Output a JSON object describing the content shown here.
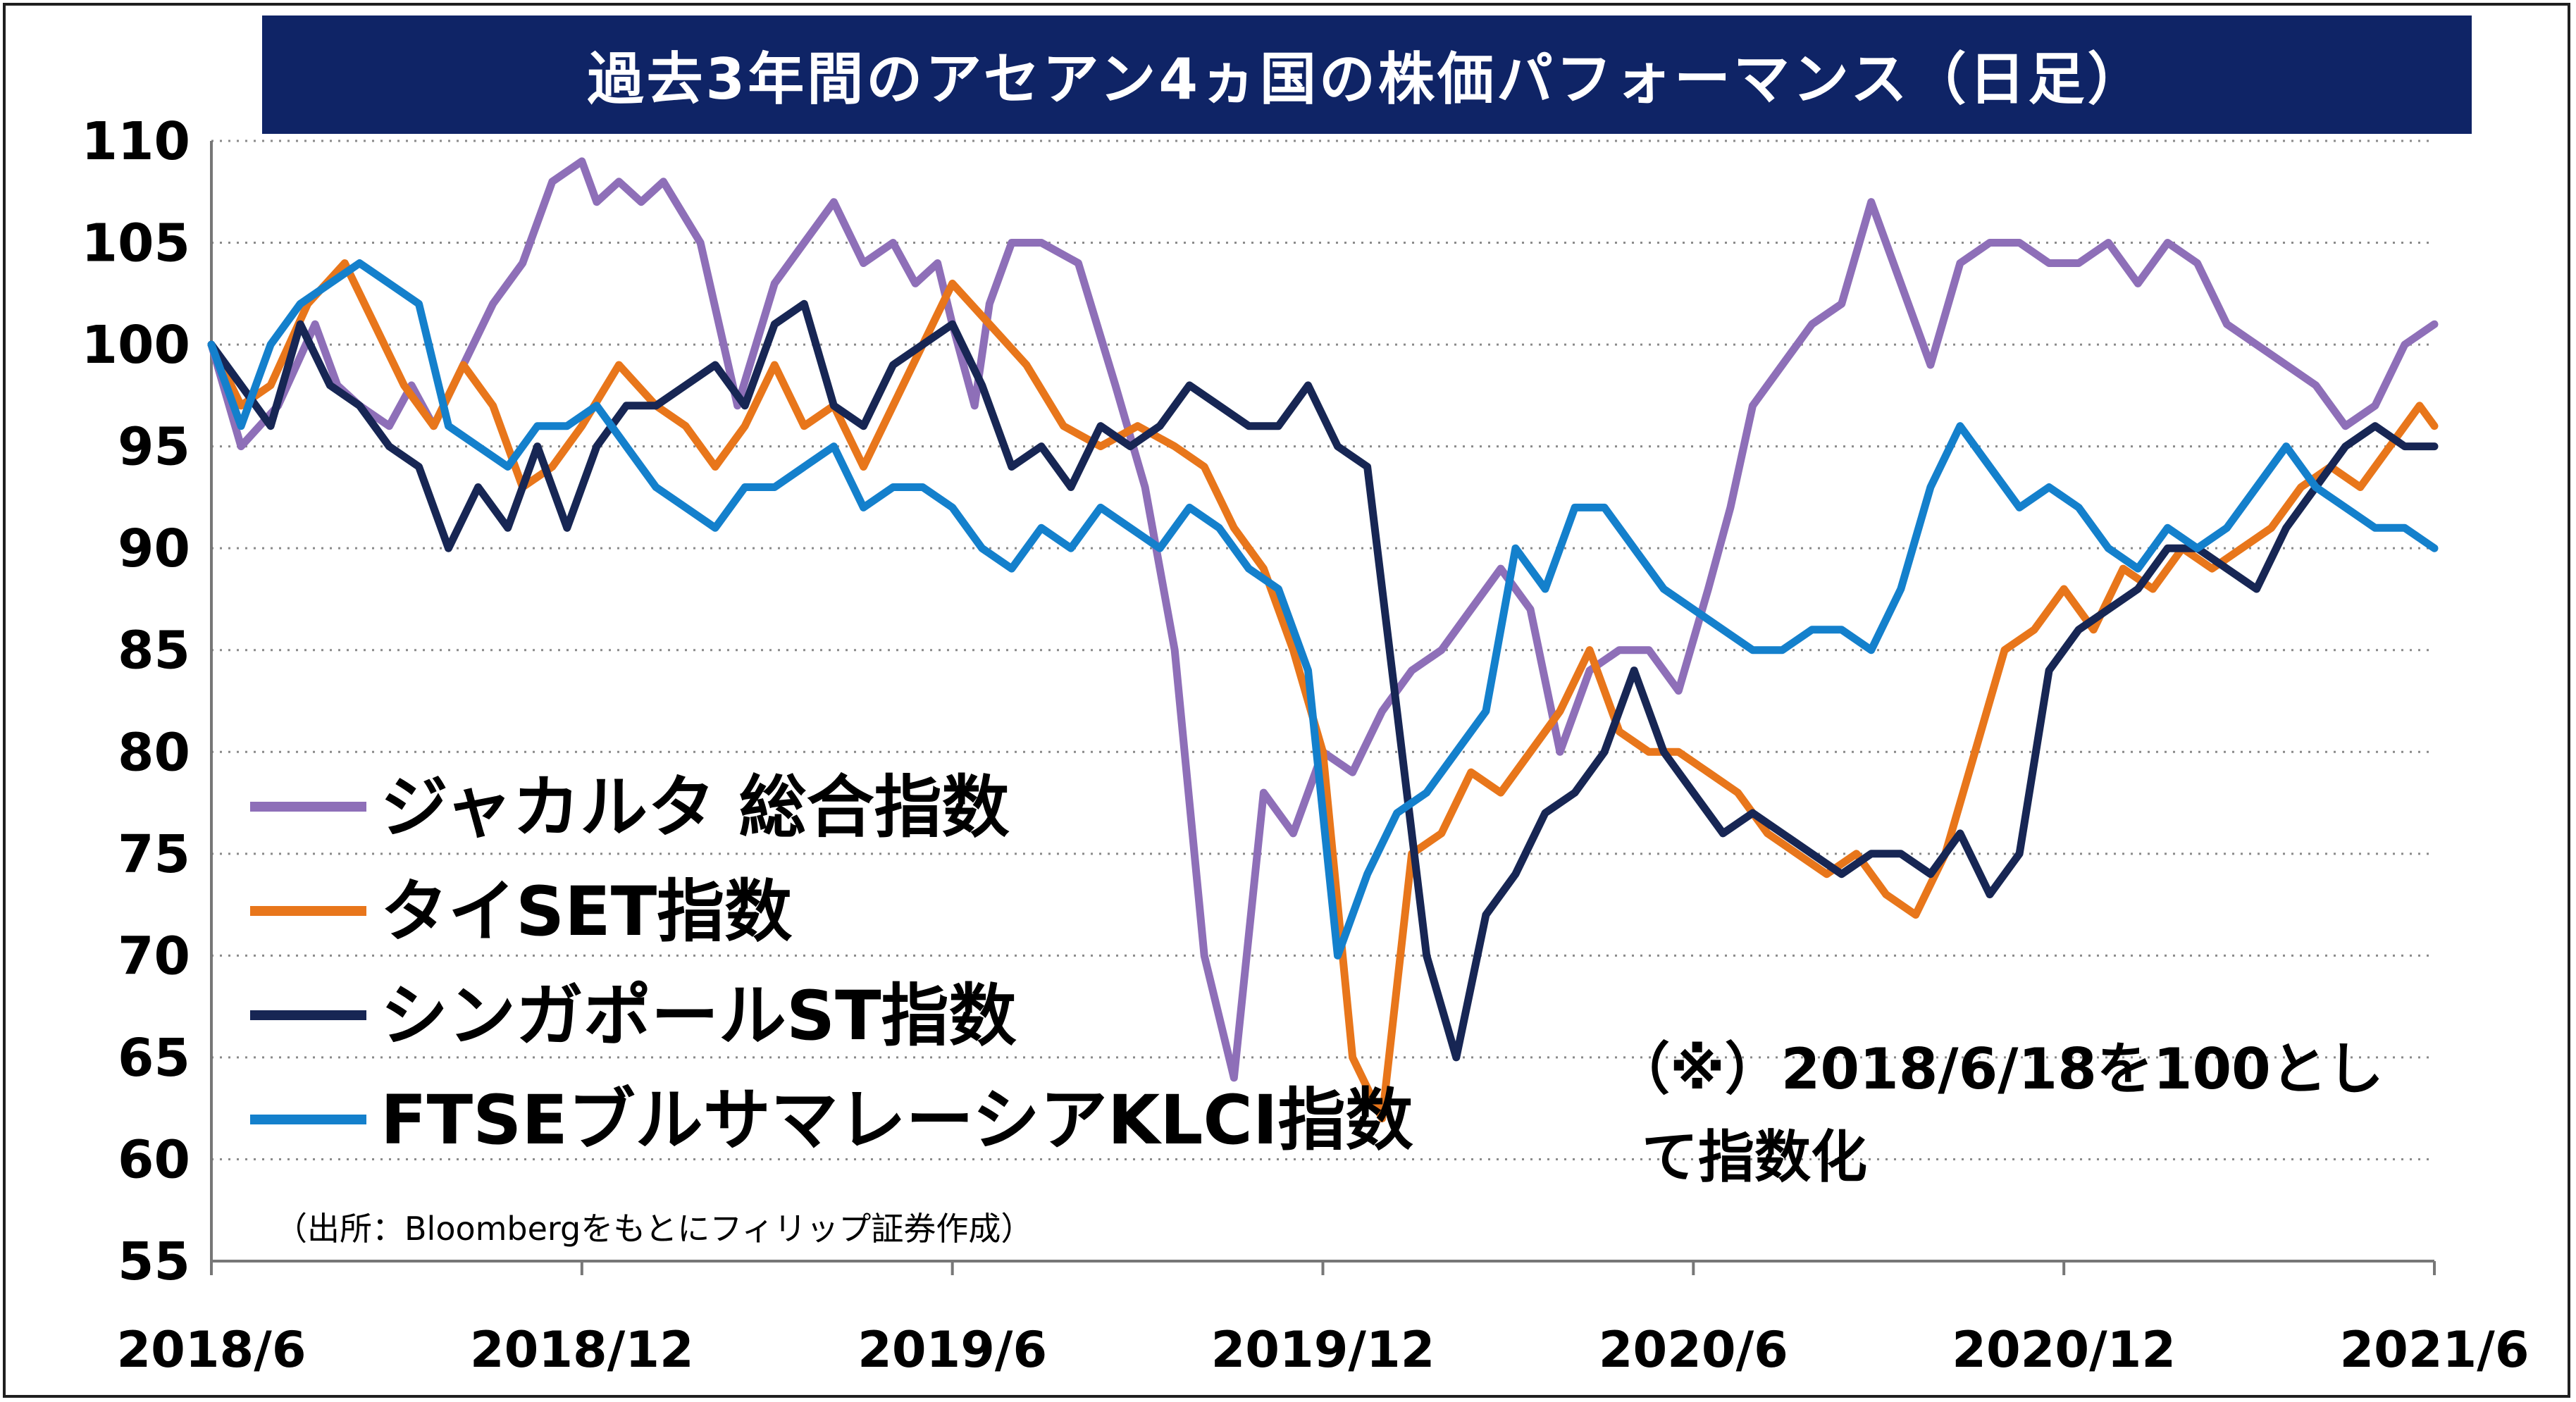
{
  "chart_data": {
    "type": "line",
    "title": "過去3年間のアセアン4ヵ国の株価パフォーマンス（日足）",
    "ylim": [
      55,
      110
    ],
    "yticks": [
      "110",
      "105",
      "100",
      "95",
      "90",
      "85",
      "80",
      "75",
      "70",
      "65",
      "60",
      "55"
    ],
    "xticks": [
      "2018/6",
      "2018/12",
      "2019/6",
      "2019/12",
      "2020/6",
      "2020/12",
      "2021/6"
    ],
    "grid": "horizontal dotted",
    "legend_placement": "center-left",
    "note_lines": [
      "（※）2018/6/18を100とし",
      "て指数化"
    ],
    "source": "（出所：Bloombergをもとにフィリップ証券作成）",
    "series": [
      {
        "name": "ジャカルタ 総合指数",
        "color": "#8e6fb8",
        "x": [
          0,
          0.04,
          0.09,
          0.14,
          0.17,
          0.2,
          0.24,
          0.27,
          0.3,
          0.34,
          0.38,
          0.42,
          0.46,
          0.5,
          0.52,
          0.55,
          0.58,
          0.61,
          0.66,
          0.71,
          0.76,
          0.8,
          0.84,
          0.88,
          0.92,
          0.95,
          0.98,
          1.0,
          1.03,
          1.05,
          1.08,
          1.12,
          1.17,
          1.22,
          1.26,
          1.3,
          1.34,
          1.38,
          1.42,
          1.46,
          1.5,
          1.54,
          1.58,
          1.62,
          1.66,
          1.7,
          1.74,
          1.78,
          1.82,
          1.86,
          1.9,
          1.94,
          1.98,
          2.02,
          2.05,
          2.08,
          2.12,
          2.16,
          2.2,
          2.24,
          2.28,
          2.32,
          2.36,
          2.4,
          2.44,
          2.48,
          2.52,
          2.56,
          2.6,
          2.64,
          2.68,
          2.72,
          2.76,
          2.8,
          2.84,
          2.88,
          2.92,
          2.96,
          3.0
        ],
        "y": [
          100,
          95,
          97,
          101,
          98,
          97,
          96,
          98,
          96,
          99,
          102,
          104,
          108,
          109,
          107,
          108,
          107,
          108,
          105,
          97,
          103,
          105,
          107,
          104,
          105,
          103,
          104,
          101,
          97,
          102,
          105,
          105,
          104,
          98,
          93,
          85,
          70,
          64,
          78,
          76,
          80,
          79,
          82,
          84,
          85,
          87,
          89,
          87,
          80,
          84,
          85,
          85,
          83,
          88,
          92,
          97,
          99,
          101,
          102,
          107,
          103,
          99,
          104,
          105,
          105,
          104,
          104,
          105,
          103,
          105,
          104,
          101,
          100,
          99,
          98,
          96,
          97,
          100,
          101
        ]
      },
      {
        "name": "タイSET指数",
        "color": "#e8761b",
        "x": [
          0,
          0.04,
          0.08,
          0.13,
          0.18,
          0.22,
          0.26,
          0.3,
          0.34,
          0.38,
          0.42,
          0.46,
          0.5,
          0.55,
          0.6,
          0.64,
          0.68,
          0.72,
          0.76,
          0.8,
          0.84,
          0.88,
          0.92,
          0.96,
          1.0,
          1.05,
          1.1,
          1.15,
          1.2,
          1.25,
          1.3,
          1.34,
          1.38,
          1.42,
          1.46,
          1.5,
          1.54,
          1.58,
          1.62,
          1.66,
          1.7,
          1.74,
          1.78,
          1.82,
          1.86,
          1.9,
          1.94,
          1.98,
          2.02,
          2.06,
          2.1,
          2.14,
          2.18,
          2.22,
          2.26,
          2.3,
          2.34,
          2.38,
          2.42,
          2.46,
          2.5,
          2.54,
          2.58,
          2.62,
          2.66,
          2.7,
          2.74,
          2.78,
          2.82,
          2.86,
          2.9,
          2.94,
          2.98,
          3.0
        ],
        "y": [
          100,
          97,
          98,
          102,
          104,
          101,
          98,
          96,
          99,
          97,
          93,
          94,
          96,
          99,
          97,
          96,
          94,
          96,
          99,
          96,
          97,
          94,
          97,
          100,
          103,
          101,
          99,
          96,
          95,
          96,
          95,
          94,
          91,
          89,
          85,
          80,
          65,
          62,
          75,
          76,
          79,
          78,
          80,
          82,
          85,
          81,
          80,
          80,
          79,
          78,
          76,
          75,
          74,
          75,
          73,
          72,
          75,
          80,
          85,
          86,
          88,
          86,
          89,
          88,
          90,
          89,
          90,
          91,
          93,
          94,
          93,
          95,
          97,
          96
        ]
      },
      {
        "name": "シンガポールST指数",
        "color": "#172654",
        "x": [
          0,
          0.04,
          0.08,
          0.12,
          0.16,
          0.2,
          0.24,
          0.28,
          0.32,
          0.36,
          0.4,
          0.44,
          0.48,
          0.52,
          0.56,
          0.6,
          0.64,
          0.68,
          0.72,
          0.76,
          0.8,
          0.84,
          0.88,
          0.92,
          0.96,
          1.0,
          1.04,
          1.08,
          1.12,
          1.16,
          1.2,
          1.24,
          1.28,
          1.32,
          1.36,
          1.4,
          1.44,
          1.48,
          1.52,
          1.56,
          1.6,
          1.64,
          1.68,
          1.72,
          1.76,
          1.8,
          1.84,
          1.88,
          1.92,
          1.96,
          2.0,
          2.04,
          2.08,
          2.12,
          2.16,
          2.2,
          2.24,
          2.28,
          2.32,
          2.36,
          2.4,
          2.44,
          2.48,
          2.52,
          2.56,
          2.6,
          2.64,
          2.68,
          2.72,
          2.76,
          2.8,
          2.84,
          2.88,
          2.92,
          2.96,
          3.0
        ],
        "y": [
          100,
          98,
          96,
          101,
          98,
          97,
          95,
          94,
          90,
          93,
          91,
          95,
          91,
          95,
          97,
          97,
          98,
          99,
          97,
          101,
          102,
          97,
          96,
          99,
          100,
          101,
          98,
          94,
          95,
          93,
          96,
          95,
          96,
          98,
          97,
          96,
          96,
          98,
          95,
          94,
          82,
          70,
          65,
          72,
          74,
          77,
          78,
          80,
          84,
          80,
          78,
          76,
          77,
          76,
          75,
          74,
          75,
          75,
          74,
          76,
          73,
          75,
          84,
          86,
          87,
          88,
          90,
          90,
          89,
          88,
          91,
          93,
          95,
          96,
          95,
          95
        ]
      },
      {
        "name": "FTSEブルサマレーシアKLCI指数",
        "color": "#1480cc",
        "x": [
          0,
          0.04,
          0.08,
          0.12,
          0.16,
          0.2,
          0.24,
          0.28,
          0.32,
          0.36,
          0.4,
          0.44,
          0.48,
          0.52,
          0.56,
          0.6,
          0.64,
          0.68,
          0.72,
          0.76,
          0.8,
          0.84,
          0.88,
          0.92,
          0.96,
          1.0,
          1.04,
          1.08,
          1.12,
          1.16,
          1.2,
          1.24,
          1.28,
          1.32,
          1.36,
          1.4,
          1.44,
          1.48,
          1.52,
          1.56,
          1.6,
          1.64,
          1.68,
          1.72,
          1.76,
          1.8,
          1.84,
          1.88,
          1.92,
          1.96,
          2.0,
          2.04,
          2.08,
          2.12,
          2.16,
          2.2,
          2.24,
          2.28,
          2.32,
          2.36,
          2.4,
          2.44,
          2.48,
          2.52,
          2.56,
          2.6,
          2.64,
          2.68,
          2.72,
          2.76,
          2.8,
          2.84,
          2.88,
          2.92,
          2.96,
          3.0
        ],
        "y": [
          100,
          96,
          100,
          102,
          103,
          104,
          103,
          102,
          96,
          95,
          94,
          96,
          96,
          97,
          95,
          93,
          92,
          91,
          93,
          93,
          94,
          95,
          92,
          93,
          93,
          92,
          90,
          89,
          91,
          90,
          92,
          91,
          90,
          92,
          91,
          89,
          88,
          84,
          70,
          74,
          77,
          78,
          80,
          82,
          90,
          88,
          92,
          92,
          90,
          88,
          87,
          86,
          85,
          85,
          86,
          86,
          85,
          88,
          93,
          96,
          94,
          92,
          93,
          92,
          90,
          89,
          91,
          90,
          91,
          93,
          95,
          93,
          92,
          91,
          91,
          90
        ]
      }
    ]
  }
}
